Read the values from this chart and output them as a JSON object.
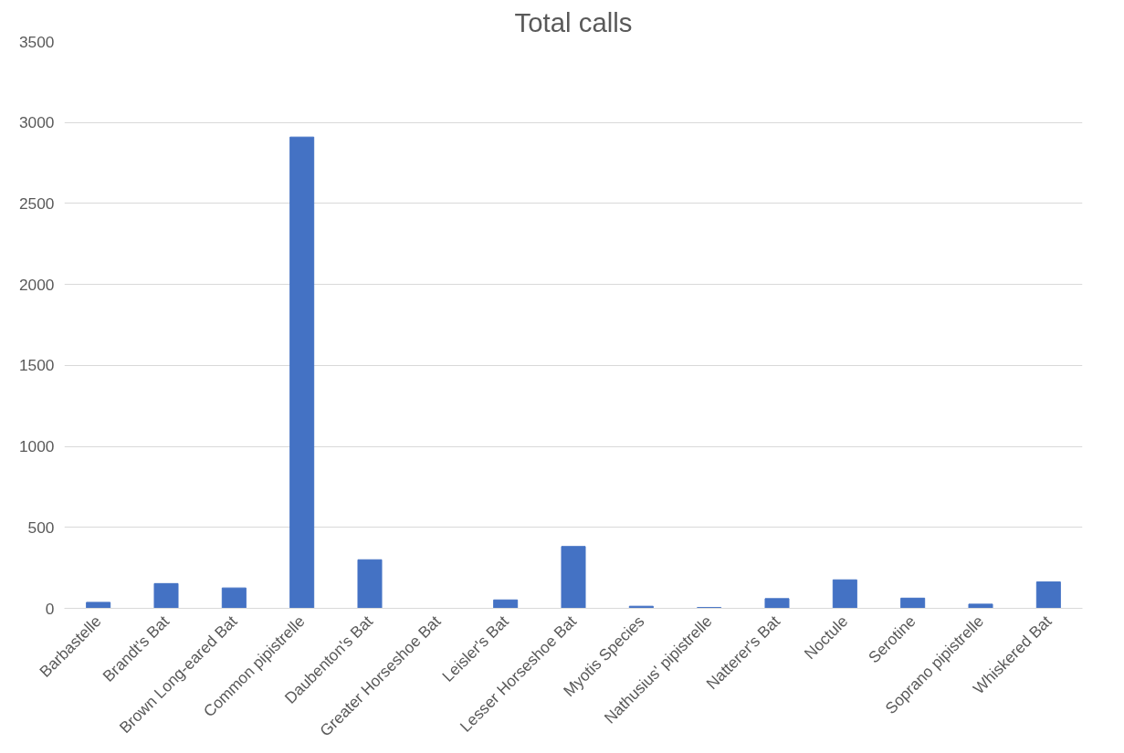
{
  "chart_data": {
    "type": "bar",
    "title": "Total calls",
    "categories": [
      "Barbastelle",
      "Brandt's Bat",
      "Brown Long-eared Bat",
      "Common pipistrelle",
      "Daubenton's Bat",
      "Greater Horseshoe Bat",
      "Leisler's Bat",
      "Lesser Horseshoe Bat",
      "Myotis Species",
      "Nathusius' pipistrelle",
      "Natterer's Bat",
      "Noctule",
      "Serotine",
      "Soprano pipistrelle",
      "Whiskered Bat"
    ],
    "values": [
      37,
      153,
      126,
      2910,
      300,
      0,
      52,
      382,
      13,
      5,
      60,
      176,
      63,
      26,
      163
    ],
    "color": "#4472c4",
    "ylim": [
      0,
      3500
    ],
    "yticks": [
      0,
      500,
      1000,
      1500,
      2000,
      2500,
      3000,
      3500
    ],
    "grid": "y"
  }
}
